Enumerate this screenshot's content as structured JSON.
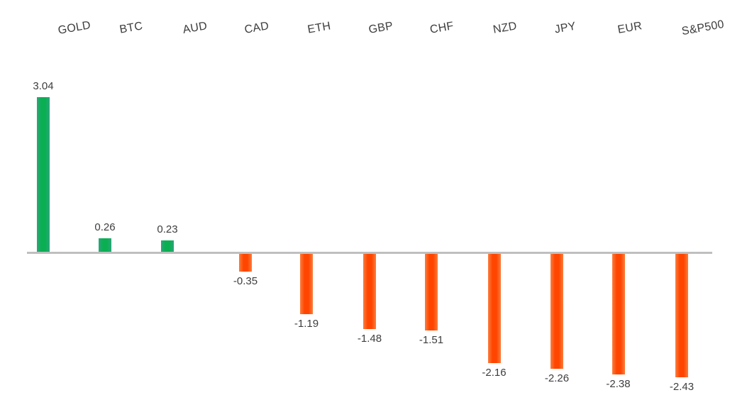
{
  "chart_data": {
    "type": "bar",
    "title": "",
    "xlabel": "",
    "ylabel": "",
    "legend": "none",
    "grid": false,
    "orientation": "vertical",
    "baseline": 0,
    "ylim": [
      -2.43,
      3.04
    ],
    "categories": [
      "GOLD",
      "BTC",
      "AUD",
      "CAD",
      "ETH",
      "GBP",
      "CHF",
      "NZD",
      "JPY",
      "EUR",
      "S&P500"
    ],
    "values": [
      3.04,
      0.26,
      0.23,
      -0.35,
      -1.19,
      -1.48,
      -1.51,
      -2.16,
      -2.26,
      -2.38,
      -2.43
    ],
    "value_labels": [
      "3.04",
      "0.26",
      "0.23",
      "-0.35",
      "-1.19",
      "-1.48",
      "-1.51",
      "-2.16",
      "-2.26",
      "-2.38",
      "-2.43"
    ],
    "colors": {
      "positive": "#0aaf52",
      "positive_edge": "#2da57b",
      "negative": "#ff4500",
      "negative_edge": "#fd7d3c",
      "axis_line": "#bfbfbf",
      "label_text": "#3d3d3d"
    }
  }
}
